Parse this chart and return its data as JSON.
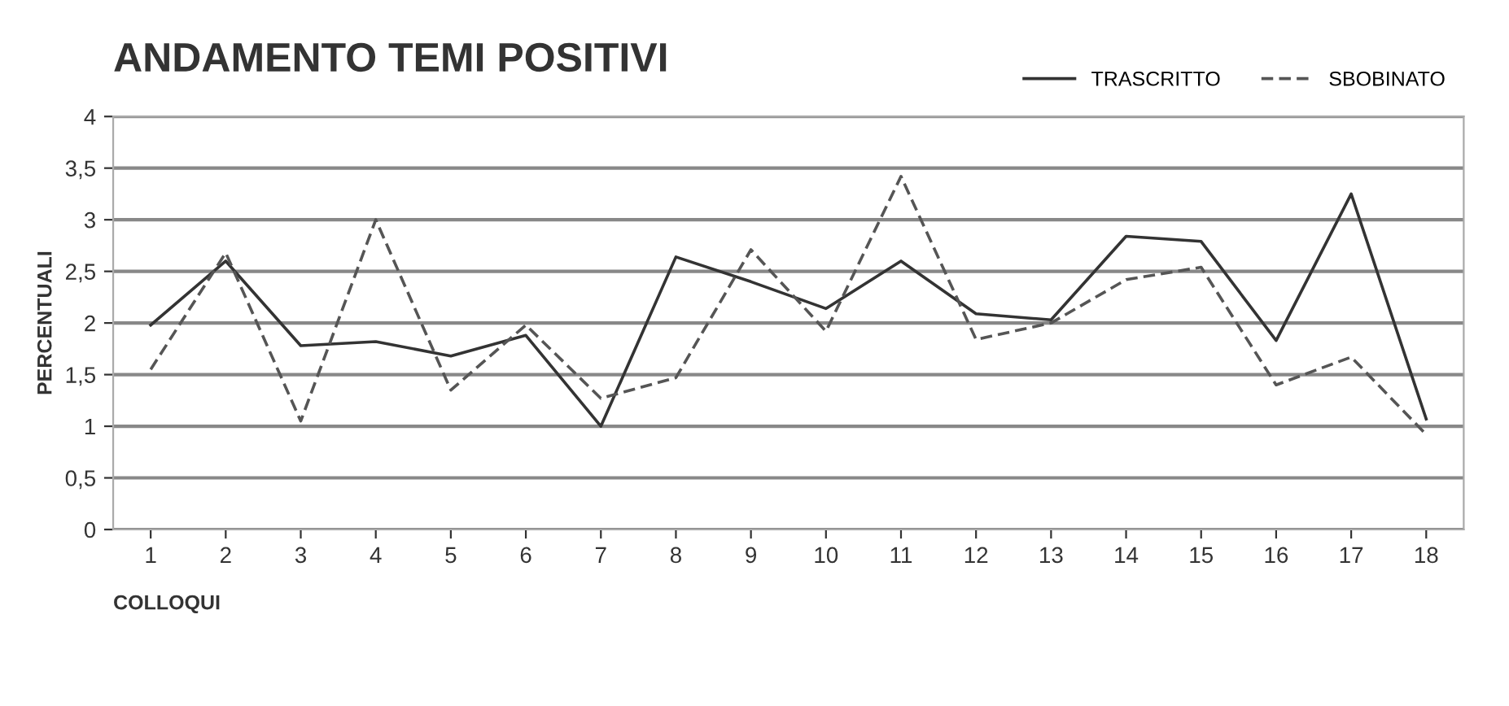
{
  "chart_data": {
    "type": "line",
    "title": "ANDAMENTO TEMI POSITIVI",
    "xlabel": "COLLOQUI",
    "ylabel": "PERCENTUALI",
    "categories": [
      "1",
      "2",
      "3",
      "4",
      "5",
      "6",
      "7",
      "8",
      "9",
      "10",
      "11",
      "12",
      "13",
      "14",
      "15",
      "16",
      "17",
      "18"
    ],
    "series": [
      {
        "name": "TRASCRITTO",
        "color": "#333333",
        "line_style": "solid",
        "values": [
          1.98,
          2.6,
          1.78,
          1.82,
          1.68,
          1.88,
          1.0,
          2.64,
          2.4,
          2.14,
          2.6,
          2.09,
          2.03,
          2.84,
          2.79,
          1.83,
          3.25,
          1.07
        ]
      },
      {
        "name": "SBOBINATO",
        "color": "#555555",
        "line_style": "dashed",
        "values": [
          1.55,
          2.68,
          1.05,
          3.0,
          1.35,
          1.98,
          1.27,
          1.47,
          2.71,
          1.92,
          3.42,
          1.84,
          2.0,
          2.42,
          2.54,
          1.4,
          1.67,
          0.92
        ]
      }
    ],
    "ylim": [
      0,
      4
    ],
    "yticks": [
      0,
      {
        "value": 0.5,
        "label": "0,5"
      },
      1,
      {
        "value": 1.5,
        "label": "1,5"
      },
      2,
      {
        "value": 2.5,
        "label": "2,5"
      },
      3,
      {
        "value": 3.5,
        "label": "3,5"
      },
      4
    ],
    "grid": "y",
    "legend": "top right",
    "marker": "none"
  }
}
